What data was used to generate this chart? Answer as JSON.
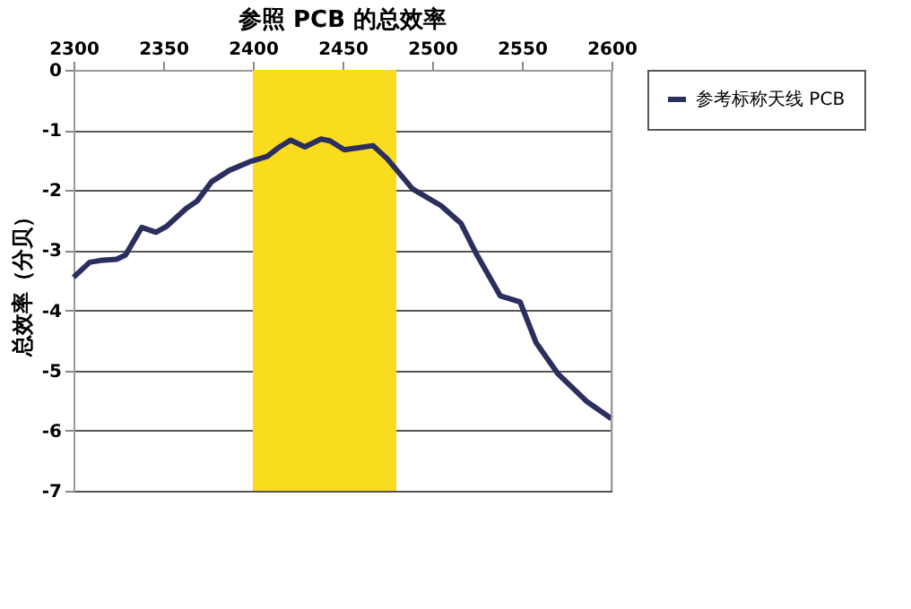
{
  "chart_data": {
    "type": "line",
    "title": "参照 PCB 的总效率",
    "ylabel": "总效率（分贝）",
    "xlim": [
      2300,
      2600
    ],
    "xticks": [
      2300,
      2350,
      2400,
      2450,
      2500,
      2550,
      2600
    ],
    "ylim": [
      -7,
      0
    ],
    "yticks": [
      -7,
      -6,
      -5,
      -4,
      -3,
      -2,
      -1,
      0
    ],
    "grid": "y",
    "legend": "right",
    "marker": "none",
    "line_style": "solid",
    "bands": [
      {
        "axis": "x",
        "from": 2400,
        "to": 2480,
        "color": "#f9dc1e"
      }
    ],
    "series": [
      {
        "name": "参考标称天线 PCB",
        "color": "#2b2f5e",
        "x": [
          2300,
          2309,
          2315,
          2324,
          2329,
          2338,
          2346,
          2352,
          2363,
          2369,
          2377,
          2387,
          2399,
          2408,
          2414,
          2421,
          2429,
          2438,
          2443,
          2451,
          2458,
          2467,
          2475,
          2489,
          2505,
          2516,
          2525,
          2538,
          2549,
          2558,
          2570,
          2586,
          2600
        ],
        "values": [
          -3.45,
          -3.2,
          -3.17,
          -3.15,
          -3.08,
          -2.62,
          -2.7,
          -2.6,
          -2.3,
          -2.18,
          -1.86,
          -1.67,
          -1.52,
          -1.44,
          -1.3,
          -1.17,
          -1.28,
          -1.15,
          -1.18,
          -1.33,
          -1.3,
          -1.26,
          -1.48,
          -1.98,
          -2.26,
          -2.55,
          -3.08,
          -3.76,
          -3.86,
          -4.54,
          -5.05,
          -5.51,
          -5.8
        ]
      }
    ]
  }
}
